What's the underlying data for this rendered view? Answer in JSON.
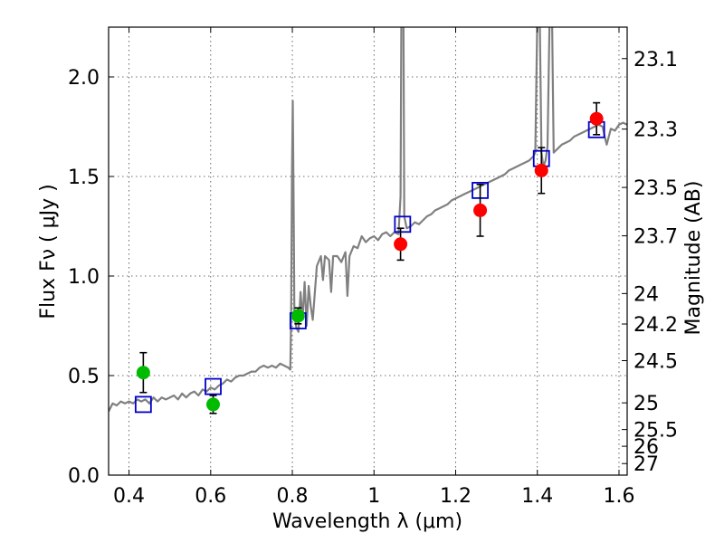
{
  "chart_data": {
    "type": "scatter",
    "title": "",
    "xlabel": "Wavelength  λ (μm)",
    "ylabel": "Flux  Fν  ( μJy )",
    "right_ylabel": "Magnitude (AB)",
    "xlim": [
      0.35,
      1.62
    ],
    "ylim": [
      0.0,
      2.25
    ],
    "grid": true,
    "colors": {
      "model": "#808080",
      "green_points": "#00bb00",
      "red_points": "#ff0000",
      "boxes": "#0000cc",
      "errorbars": "#000000"
    },
    "x_ticks": [
      {
        "value": 0.4,
        "label": "0.4"
      },
      {
        "value": 0.6,
        "label": "0.6"
      },
      {
        "value": 0.8,
        "label": "0.8"
      },
      {
        "value": 1.0,
        "label": "1"
      },
      {
        "value": 1.2,
        "label": "1.2"
      },
      {
        "value": 1.4,
        "label": "1.4"
      },
      {
        "value": 1.6,
        "label": "1.6"
      }
    ],
    "y_ticks": [
      {
        "value": 0.0,
        "label": "0.0"
      },
      {
        "value": 0.5,
        "label": "0.5"
      },
      {
        "value": 1.0,
        "label": "1.0"
      },
      {
        "value": 1.5,
        "label": "1.5"
      },
      {
        "value": 2.0,
        "label": "2.0"
      }
    ],
    "right_ticks": [
      {
        "flux": 2.092,
        "label": "23.1"
      },
      {
        "flux": 1.738,
        "label": "23.3"
      },
      {
        "flux": 1.445,
        "label": "23.5"
      },
      {
        "flux": 1.202,
        "label": "23.7"
      },
      {
        "flux": 0.912,
        "label": "24"
      },
      {
        "flux": 0.759,
        "label": "24.2"
      },
      {
        "flux": 0.575,
        "label": "24.5"
      },
      {
        "flux": 0.363,
        "label": "25"
      },
      {
        "flux": 0.229,
        "label": "25.5"
      },
      {
        "flux": 0.145,
        "label": "26"
      },
      {
        "flux": 0.058,
        "label": "27"
      }
    ],
    "green_points": [
      {
        "x": 0.435,
        "y": 0.515,
        "err": 0.1
      },
      {
        "x": 0.606,
        "y": 0.355,
        "err": 0.045
      },
      {
        "x": 0.814,
        "y": 0.8,
        "err": 0.04
      }
    ],
    "red_points": [
      {
        "x": 1.065,
        "y": 1.16,
        "err": 0.08
      },
      {
        "x": 1.26,
        "y": 1.33,
        "err": 0.13
      },
      {
        "x": 1.41,
        "y": 1.53,
        "err": 0.115
      },
      {
        "x": 1.545,
        "y": 1.79,
        "err": 0.08
      }
    ],
    "model_boxes": [
      {
        "x": 0.435,
        "y": 0.355
      },
      {
        "x": 0.606,
        "y": 0.445
      },
      {
        "x": 0.814,
        "y": 0.775
      },
      {
        "x": 1.07,
        "y": 1.26
      },
      {
        "x": 1.26,
        "y": 1.43
      },
      {
        "x": 1.41,
        "y": 1.59
      },
      {
        "x": 1.545,
        "y": 1.735
      }
    ],
    "model_spectrum": [
      [
        0.35,
        0.32
      ],
      [
        0.36,
        0.36
      ],
      [
        0.37,
        0.35
      ],
      [
        0.38,
        0.37
      ],
      [
        0.39,
        0.36
      ],
      [
        0.4,
        0.37
      ],
      [
        0.41,
        0.36
      ],
      [
        0.42,
        0.38
      ],
      [
        0.43,
        0.37
      ],
      [
        0.44,
        0.38
      ],
      [
        0.45,
        0.36
      ],
      [
        0.46,
        0.39
      ],
      [
        0.47,
        0.37
      ],
      [
        0.48,
        0.39
      ],
      [
        0.49,
        0.38
      ],
      [
        0.5,
        0.39
      ],
      [
        0.51,
        0.4
      ],
      [
        0.52,
        0.38
      ],
      [
        0.53,
        0.41
      ],
      [
        0.54,
        0.39
      ],
      [
        0.55,
        0.41
      ],
      [
        0.56,
        0.42
      ],
      [
        0.57,
        0.4
      ],
      [
        0.58,
        0.43
      ],
      [
        0.59,
        0.42
      ],
      [
        0.6,
        0.44
      ],
      [
        0.61,
        0.43
      ],
      [
        0.62,
        0.45
      ],
      [
        0.63,
        0.46
      ],
      [
        0.64,
        0.48
      ],
      [
        0.65,
        0.47
      ],
      [
        0.66,
        0.49
      ],
      [
        0.67,
        0.5
      ],
      [
        0.68,
        0.5
      ],
      [
        0.69,
        0.51
      ],
      [
        0.7,
        0.52
      ],
      [
        0.71,
        0.52
      ],
      [
        0.72,
        0.54
      ],
      [
        0.73,
        0.55
      ],
      [
        0.74,
        0.54
      ],
      [
        0.75,
        0.55
      ],
      [
        0.76,
        0.54
      ],
      [
        0.77,
        0.56
      ],
      [
        0.78,
        0.55
      ],
      [
        0.79,
        0.54
      ],
      [
        0.795,
        0.53
      ],
      [
        0.797,
        0.8
      ],
      [
        0.799,
        1.5
      ],
      [
        0.801,
        1.88
      ],
      [
        0.803,
        1.4
      ],
      [
        0.805,
        0.8
      ],
      [
        0.81,
        0.74
      ],
      [
        0.815,
        0.72
      ],
      [
        0.82,
        0.92
      ],
      [
        0.825,
        0.78
      ],
      [
        0.83,
        0.97
      ],
      [
        0.835,
        0.75
      ],
      [
        0.84,
        0.95
      ],
      [
        0.845,
        0.85
      ],
      [
        0.85,
        0.78
      ],
      [
        0.86,
        1.05
      ],
      [
        0.87,
        1.1
      ],
      [
        0.875,
        0.98
      ],
      [
        0.88,
        1.1
      ],
      [
        0.89,
        1.08
      ],
      [
        0.895,
        0.92
      ],
      [
        0.9,
        1.1
      ],
      [
        0.91,
        1.1
      ],
      [
        0.92,
        1.07
      ],
      [
        0.93,
        1.12
      ],
      [
        0.935,
        0.9
      ],
      [
        0.94,
        1.1
      ],
      [
        0.95,
        1.15
      ],
      [
        0.96,
        1.14
      ],
      [
        0.97,
        1.2
      ],
      [
        0.98,
        1.17
      ],
      [
        0.99,
        1.19
      ],
      [
        1.0,
        1.2
      ],
      [
        1.01,
        1.18
      ],
      [
        1.02,
        1.21
      ],
      [
        1.03,
        1.22
      ],
      [
        1.04,
        1.2
      ],
      [
        1.05,
        1.22
      ],
      [
        1.06,
        1.21
      ],
      [
        1.065,
        1.4
      ],
      [
        1.067,
        2.3
      ],
      [
        1.072,
        2.3
      ],
      [
        1.074,
        1.3
      ],
      [
        1.08,
        1.24
      ],
      [
        1.09,
        1.25
      ],
      [
        1.1,
        1.27
      ],
      [
        1.11,
        1.26
      ],
      [
        1.12,
        1.28
      ],
      [
        1.13,
        1.3
      ],
      [
        1.14,
        1.31
      ],
      [
        1.15,
        1.33
      ],
      [
        1.16,
        1.34
      ],
      [
        1.17,
        1.35
      ],
      [
        1.18,
        1.36
      ],
      [
        1.19,
        1.38
      ],
      [
        1.2,
        1.39
      ],
      [
        1.21,
        1.4
      ],
      [
        1.22,
        1.41
      ],
      [
        1.23,
        1.42
      ],
      [
        1.24,
        1.43
      ],
      [
        1.25,
        1.44
      ],
      [
        1.26,
        1.45
      ],
      [
        1.27,
        1.46
      ],
      [
        1.28,
        1.47
      ],
      [
        1.29,
        1.48
      ],
      [
        1.3,
        1.49
      ],
      [
        1.31,
        1.5
      ],
      [
        1.32,
        1.51
      ],
      [
        1.33,
        1.53
      ],
      [
        1.34,
        1.54
      ],
      [
        1.35,
        1.55
      ],
      [
        1.36,
        1.56
      ],
      [
        1.37,
        1.57
      ],
      [
        1.38,
        1.58
      ],
      [
        1.39,
        1.6
      ],
      [
        1.395,
        1.62
      ],
      [
        1.4,
        2.3
      ],
      [
        1.406,
        2.3
      ],
      [
        1.41,
        1.62
      ],
      [
        1.415,
        1.55
      ],
      [
        1.42,
        1.58
      ],
      [
        1.425,
        1.65
      ],
      [
        1.43,
        2.3
      ],
      [
        1.436,
        2.3
      ],
      [
        1.44,
        1.62
      ],
      [
        1.45,
        1.64
      ],
      [
        1.46,
        1.66
      ],
      [
        1.47,
        1.67
      ],
      [
        1.48,
        1.68
      ],
      [
        1.49,
        1.7
      ],
      [
        1.5,
        1.71
      ],
      [
        1.51,
        1.72
      ],
      [
        1.52,
        1.73
      ],
      [
        1.53,
        1.74
      ],
      [
        1.54,
        1.75
      ],
      [
        1.55,
        1.76
      ],
      [
        1.56,
        1.75
      ],
      [
        1.565,
        1.7
      ],
      [
        1.57,
        1.66
      ],
      [
        1.575,
        1.7
      ],
      [
        1.58,
        1.74
      ],
      [
        1.59,
        1.73
      ],
      [
        1.6,
        1.76
      ],
      [
        1.61,
        1.77
      ],
      [
        1.62,
        1.76
      ]
    ]
  }
}
